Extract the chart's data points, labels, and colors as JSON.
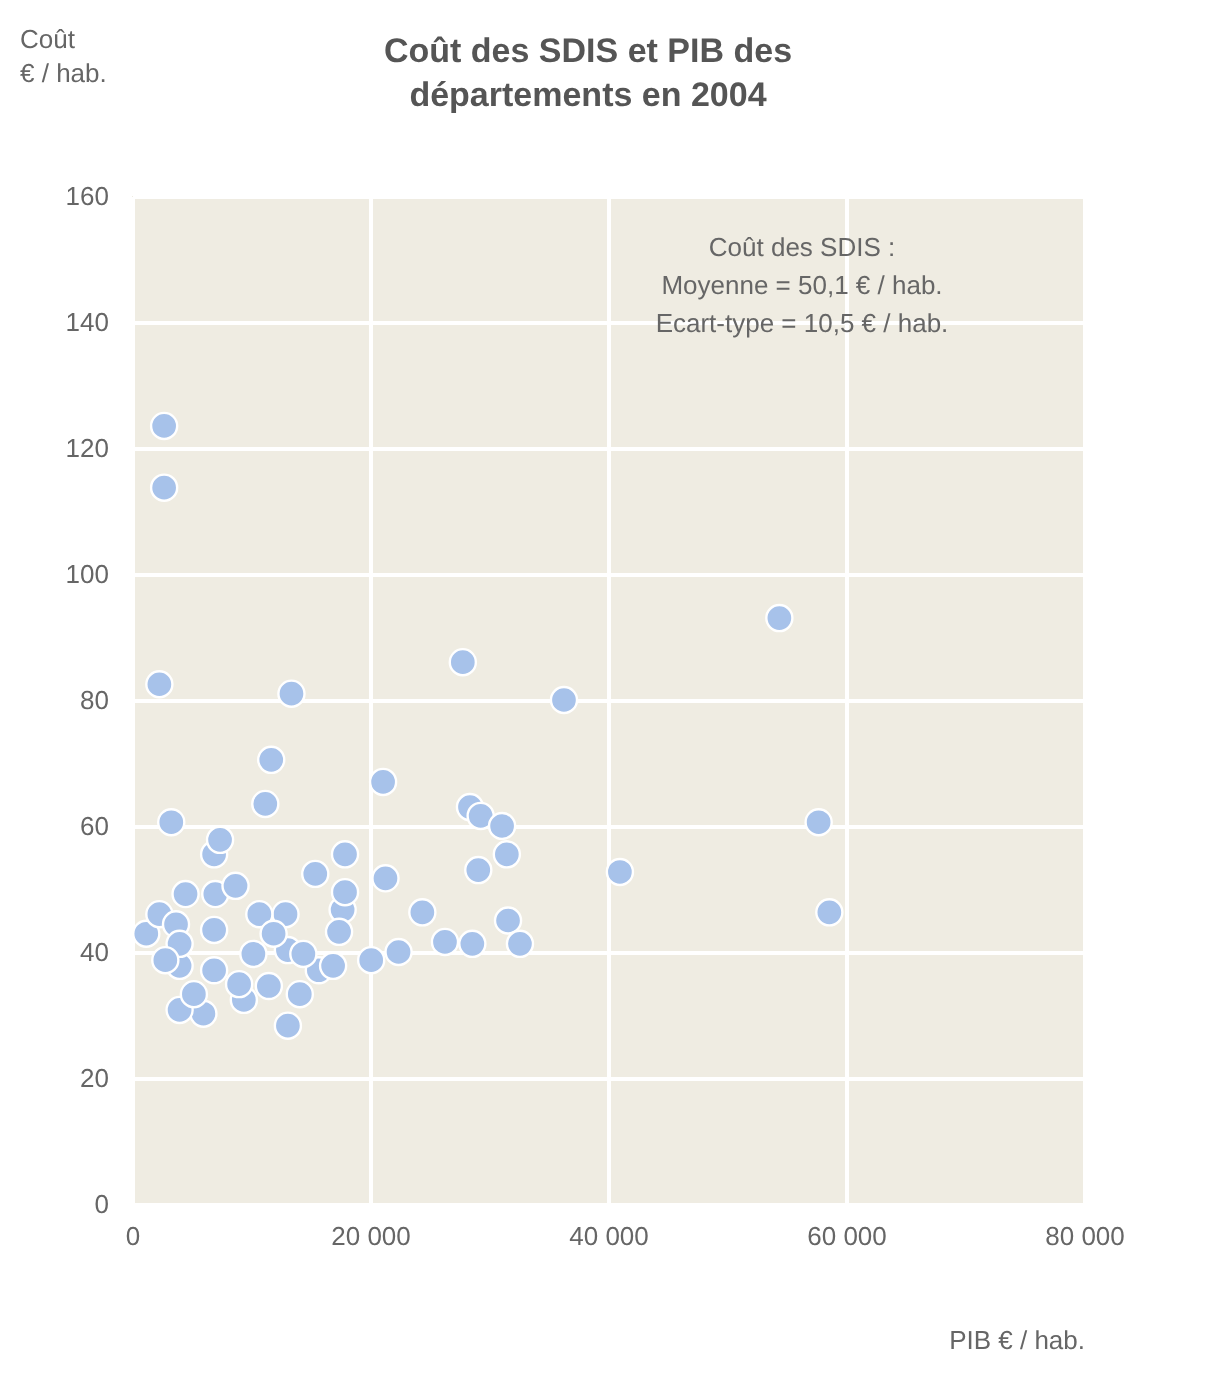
{
  "chart_data": {
    "type": "scatter",
    "title": [
      "Coût des SDIS et PIB des",
      "départements en 2004"
    ],
    "xlabel": "PIB € / hab.",
    "ylabel": "Coût\n€ / hab.",
    "annotations": [
      "Coût des SDIS :",
      "Moyenne = 50,1 € / hab.",
      "Ecart-type = 10,5 € / hab."
    ],
    "x": [
      2700,
      2700,
      2300,
      13400,
      27800,
      36300,
      54400,
      11700,
      21100,
      11200,
      3300,
      28400,
      29300,
      31100,
      31500,
      29100,
      41000,
      57700,
      58600,
      21300,
      15400,
      17700,
      24400,
      26300,
      28600,
      31600,
      32600,
      20100,
      22400,
      15700,
      13100,
      14100,
      13100,
      6900,
      17900,
      17900,
      16900,
      17400,
      14400,
      12900,
      11500,
      9400,
      6000,
      4000,
      6900,
      4000,
      1200,
      2300,
      3700,
      4500,
      7000,
      8700,
      6900,
      4000,
      2800,
      10700,
      11900,
      10200,
      9000,
      7400,
      5200
    ],
    "series": [
      {
        "color": "#a7c2ea",
        "values": [
          123.5,
          113.7,
          82.5,
          81,
          86,
          80,
          93,
          70.5,
          67,
          63.5,
          60.6,
          63,
          61.6,
          60,
          55.5,
          53,
          52.7,
          60.6,
          46.3,
          51.7,
          52.4,
          46.7,
          46.3,
          41.6,
          41.3,
          45,
          41.3,
          38.7,
          40,
          37.1,
          40.3,
          33.3,
          28.3,
          55.5,
          55.5,
          49.5,
          37.8,
          43.2,
          39.7,
          46,
          34.6,
          32.4,
          30.2,
          30.8,
          37.1,
          37.8,
          42.9,
          46,
          44.4,
          49.2,
          49.2,
          50.5,
          43.5,
          41.3,
          38.7,
          46,
          42.9,
          39.7,
          34.9,
          57.8,
          33.3
        ]
      }
    ],
    "xlim": [
      0,
      80000
    ],
    "ylim": [
      0,
      160
    ],
    "xticks": [
      0,
      {
        "value": 20000,
        "label": "20 000"
      },
      {
        "value": 40000,
        "label": "40 000"
      },
      {
        "value": 60000,
        "label": "60 000"
      },
      {
        "value": 80000,
        "label": "80 000"
      }
    ],
    "yticks": [
      0,
      20,
      40,
      60,
      80,
      100,
      120,
      140,
      160
    ],
    "grid": true,
    "legend": false,
    "marker": "circle"
  }
}
